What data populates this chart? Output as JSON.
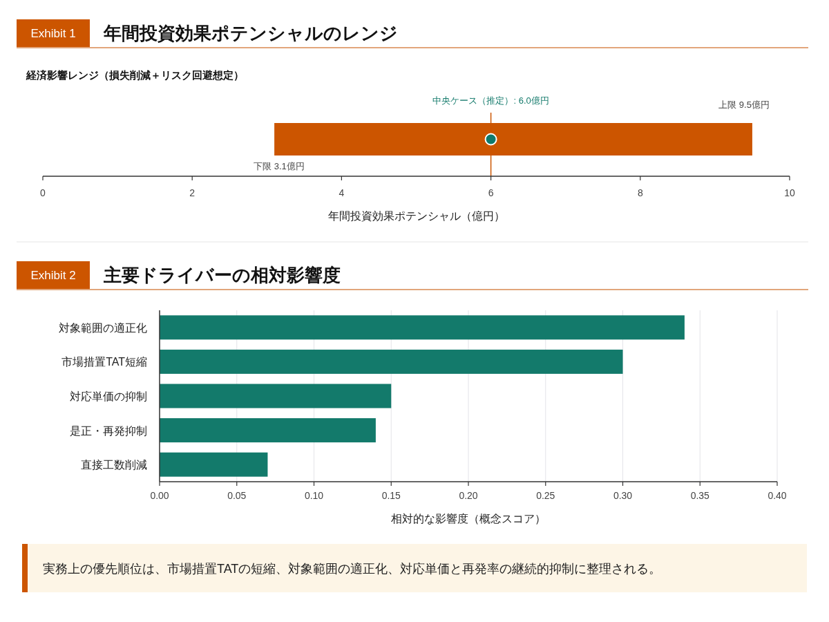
{
  "chart_data": [
    {
      "type": "bar",
      "orientation": "horizontal",
      "title": "年間投資効果ポテンシャルのレンジ",
      "subtitle": "経済影響レンジ（損失削減＋リスク回避想定）",
      "xlabel": "年間投資効果ポテンシャル（億円）",
      "categories": [
        null
      ],
      "series": [
        {
          "type": "bar",
          "color": "#cc5500",
          "base": [
            3.1
          ],
          "values": [
            6.4
          ]
        },
        {
          "type": "scatter",
          "color": "#0e7a6d",
          "values": [
            6.0
          ]
        }
      ],
      "xlim": [
        0,
        10
      ],
      "xticks": [
        0,
        2,
        4,
        6,
        8,
        10
      ],
      "tick_labels": "x",
      "grid": false,
      "ref_lines": [
        {
          "axis": "x",
          "value": 6.0,
          "label": "中央ケース（推定）: 6.0億円",
          "color": "#cc5500"
        }
      ],
      "annotations": [
        "Exhibit 1",
        "下限 3.1億円",
        "上限 9.5億円"
      ]
    },
    {
      "type": "bar",
      "orientation": "horizontal",
      "title": "主要ドライバーの相対影響度",
      "xlabel": "相対的な影響度（概念スコア）",
      "categories": [
        "対象範囲の適正化",
        "市場措置TAT短縮",
        "対応単価の抑制",
        "是正・再発抑制",
        "直接工数削減"
      ],
      "values": [
        0.34,
        0.3,
        0.15,
        0.14,
        0.07
      ],
      "color": "#137a6b",
      "xlim": [
        0,
        0.4
      ],
      "xticks": [
        {
          "value": 0,
          "label": "0.00"
        },
        {
          "value": 0.05,
          "label": "0.05"
        },
        {
          "value": 0.1,
          "label": "0.10"
        },
        {
          "value": 0.15,
          "label": "0.15"
        },
        {
          "value": 0.2,
          "label": "0.20"
        },
        {
          "value": 0.25,
          "label": "0.25"
        },
        {
          "value": 0.3,
          "label": "0.30"
        },
        {
          "value": 0.35,
          "label": "0.35"
        },
        {
          "value": 0.4,
          "label": "0.40"
        }
      ],
      "grid": "x",
      "annotations": [
        "Exhibit 2",
        "実務上の優先順位は、市場措置TATの短縮、対象範囲の適正化、対応単価と再発率の継続的抑制に整理される。"
      ]
    }
  ]
}
